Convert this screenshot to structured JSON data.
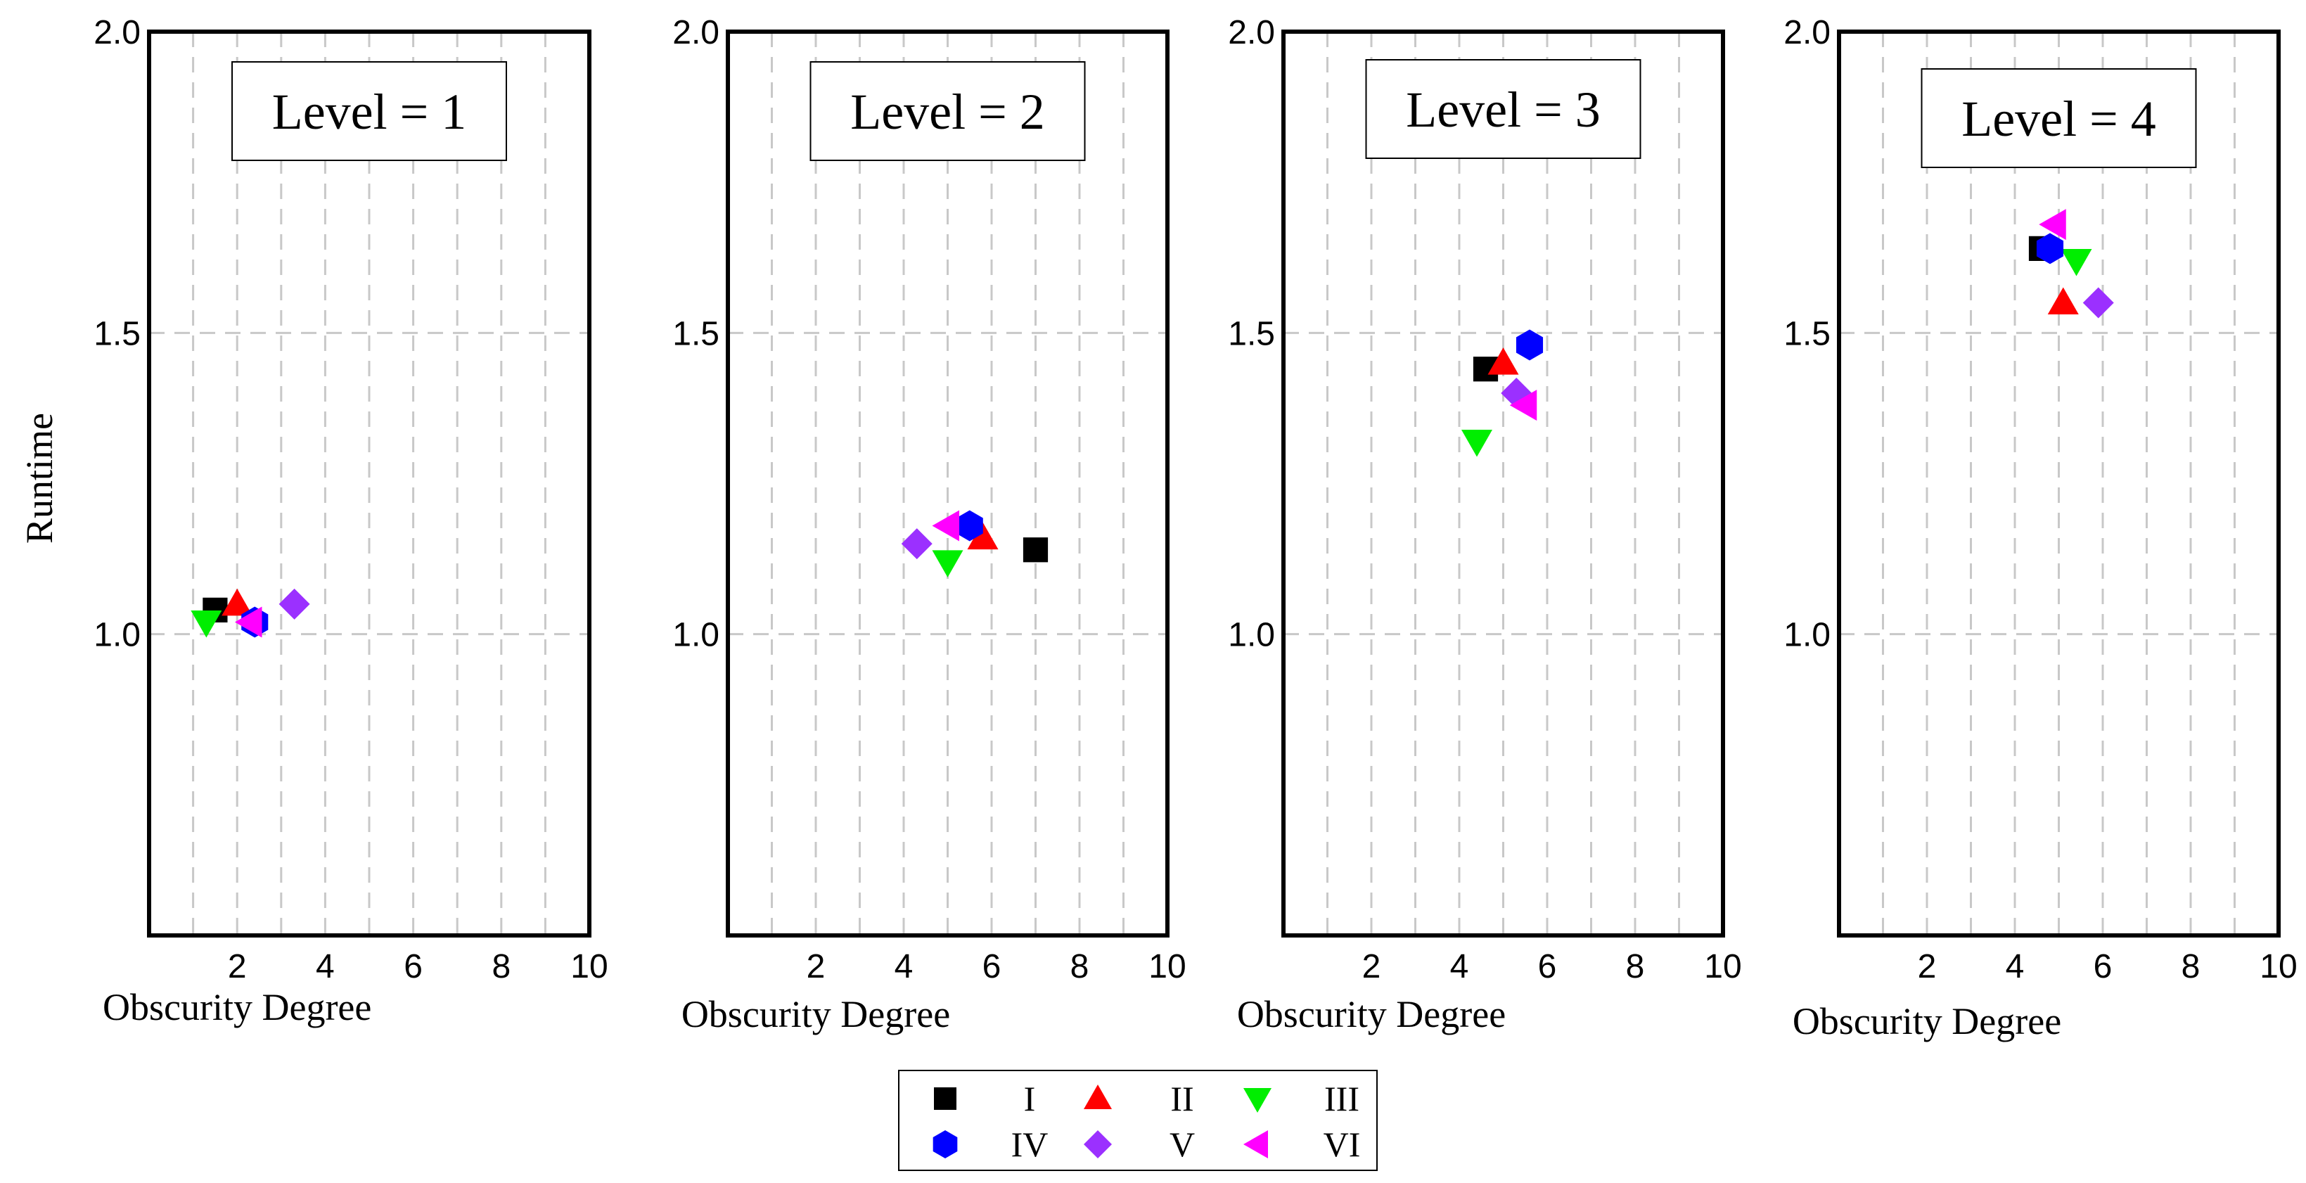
{
  "chart_data": {
    "type": "scatter",
    "ylabel": "Runtime",
    "xlabel": "Obscurity Degree",
    "xlim": [
      0,
      10
    ],
    "ylim": [
      0.5,
      2.0
    ],
    "xticks": [
      "2",
      "4",
      "6",
      "8",
      "10"
    ],
    "yticks": [
      "1.0",
      "1.5",
      "2.0"
    ],
    "grid": true,
    "legend": [
      {
        "name": "I",
        "marker": "square",
        "color": "#000000"
      },
      {
        "name": "II",
        "marker": "triangle-up",
        "color": "#ff0000"
      },
      {
        "name": "III",
        "marker": "triangle-down",
        "color": "#00ee00"
      },
      {
        "name": "IV",
        "marker": "hexagon",
        "color": "#0000ff"
      },
      {
        "name": "V",
        "marker": "diamond",
        "color": "#9b30ff"
      },
      {
        "name": "VI",
        "marker": "triangle-left",
        "color": "#ff00ff"
      }
    ],
    "panels": [
      {
        "title": "Level = 1",
        "points": [
          {
            "series": "I",
            "x": 1.5,
            "y": 1.04
          },
          {
            "series": "II",
            "x": 2.0,
            "y": 1.05
          },
          {
            "series": "III",
            "x": 1.3,
            "y": 1.02
          },
          {
            "series": "IV",
            "x": 2.4,
            "y": 1.02
          },
          {
            "series": "V",
            "x": 3.3,
            "y": 1.05
          },
          {
            "series": "VI",
            "x": 2.3,
            "y": 1.02
          }
        ]
      },
      {
        "title": "Level = 2",
        "points": [
          {
            "series": "I",
            "x": 7.0,
            "y": 1.14
          },
          {
            "series": "II",
            "x": 5.8,
            "y": 1.16
          },
          {
            "series": "III",
            "x": 5.0,
            "y": 1.12
          },
          {
            "series": "IV",
            "x": 5.5,
            "y": 1.18
          },
          {
            "series": "V",
            "x": 4.3,
            "y": 1.15
          },
          {
            "series": "VI",
            "x": 5.0,
            "y": 1.18
          }
        ]
      },
      {
        "title": "Level = 3",
        "points": [
          {
            "series": "I",
            "x": 4.6,
            "y": 1.44
          },
          {
            "series": "II",
            "x": 5.0,
            "y": 1.45
          },
          {
            "series": "III",
            "x": 4.4,
            "y": 1.32
          },
          {
            "series": "IV",
            "x": 5.6,
            "y": 1.48
          },
          {
            "series": "V",
            "x": 5.3,
            "y": 1.4
          },
          {
            "series": "VI",
            "x": 5.5,
            "y": 1.38
          }
        ]
      },
      {
        "title": "Level = 4",
        "points": [
          {
            "series": "I",
            "x": 4.6,
            "y": 1.64
          },
          {
            "series": "II",
            "x": 5.1,
            "y": 1.55
          },
          {
            "series": "III",
            "x": 5.4,
            "y": 1.62
          },
          {
            "series": "IV",
            "x": 4.8,
            "y": 1.64
          },
          {
            "series": "V",
            "x": 5.9,
            "y": 1.55
          },
          {
            "series": "VI",
            "x": 4.9,
            "y": 1.68
          }
        ]
      }
    ]
  }
}
